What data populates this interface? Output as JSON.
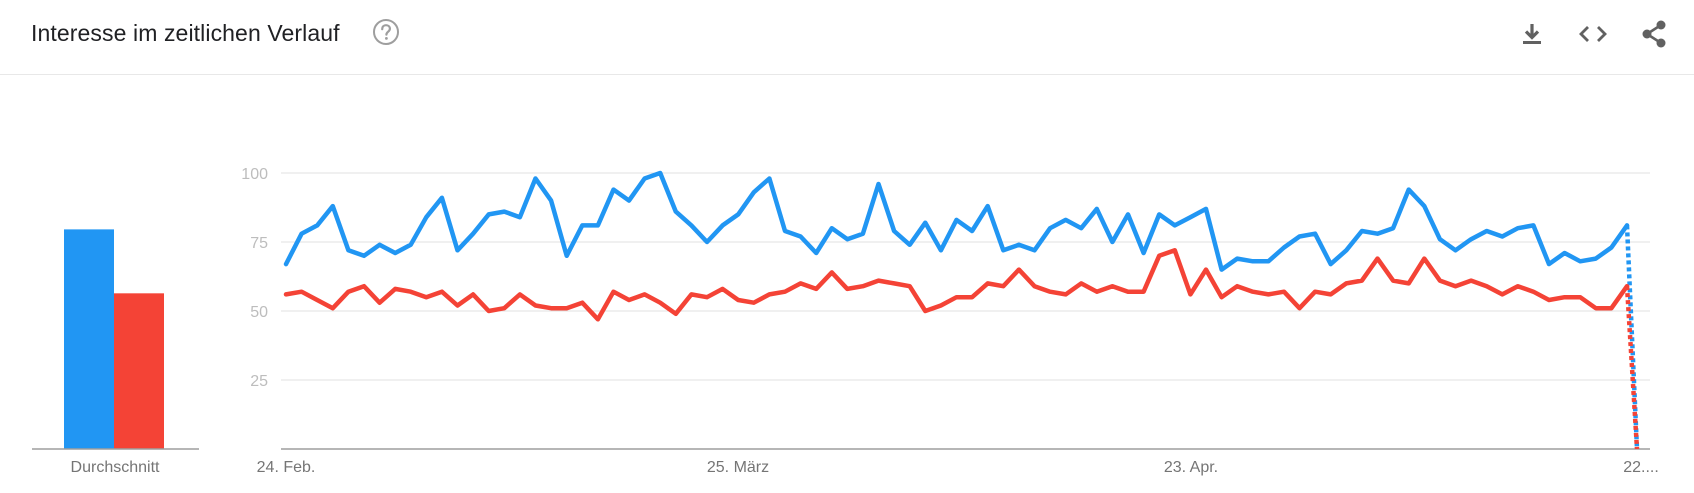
{
  "header": {
    "title": "Interesse im zeitlichen Verlauf",
    "icons": {
      "help": "help-circle-icon",
      "download": "download-icon",
      "embed": "embed-code-icon",
      "share": "share-icon"
    }
  },
  "colors": {
    "series_1": "#2196f3",
    "series_2": "#f44336",
    "grid": "#e0e0e0",
    "axis": "#9e9e9e",
    "tick_text": "#bdbdbd",
    "label_text": "#757575"
  },
  "chart_data": [
    {
      "type": "bar",
      "categories": [
        "Durchschnitt"
      ],
      "series": [
        {
          "values": [
            79
          ]
        },
        {
          "values": [
            56
          ]
        }
      ],
      "ylim": [
        0,
        100
      ]
    },
    {
      "type": "line",
      "x_ticks": [
        "24. Feb.",
        "25. März",
        "23. Apr.",
        "22...."
      ],
      "y_ticks": [
        "25",
        "50",
        "75",
        "100"
      ],
      "ylim": [
        0,
        100
      ],
      "grid": true,
      "partial_last_point": true,
      "series": [
        {
          "values": [
            67,
            78,
            81,
            88,
            72,
            70,
            74,
            71,
            74,
            84,
            91,
            72,
            78,
            85,
            86,
            84,
            98,
            90,
            70,
            81,
            81,
            94,
            90,
            98,
            100,
            86,
            81,
            75,
            81,
            85,
            93,
            98,
            79,
            77,
            71,
            80,
            76,
            78,
            96,
            79,
            74,
            82,
            72,
            83,
            79,
            88,
            72,
            74,
            72,
            80,
            83,
            80,
            87,
            75,
            85,
            71,
            85,
            81,
            84,
            87,
            65,
            69,
            68,
            68,
            73,
            77,
            78,
            67,
            72,
            79,
            78,
            80,
            94,
            88,
            76,
            72,
            76,
            79,
            77,
            80,
            81,
            67,
            71,
            68,
            69,
            73,
            81,
            0
          ]
        },
        {
          "values": [
            56,
            57,
            54,
            51,
            57,
            59,
            53,
            58,
            57,
            55,
            57,
            52,
            56,
            50,
            51,
            56,
            52,
            51,
            51,
            53,
            47,
            57,
            54,
            56,
            53,
            49,
            56,
            55,
            58,
            54,
            53,
            56,
            57,
            60,
            58,
            64,
            58,
            59,
            61,
            60,
            59,
            50,
            52,
            55,
            55,
            60,
            59,
            65,
            59,
            57,
            56,
            60,
            57,
            59,
            57,
            57,
            70,
            72,
            56,
            65,
            55,
            59,
            57,
            56,
            57,
            51,
            57,
            56,
            60,
            61,
            69,
            61,
            60,
            69,
            61,
            59,
            61,
            59,
            56,
            59,
            57,
            54,
            55,
            55,
            51,
            51,
            59,
            0
          ]
        }
      ]
    }
  ]
}
